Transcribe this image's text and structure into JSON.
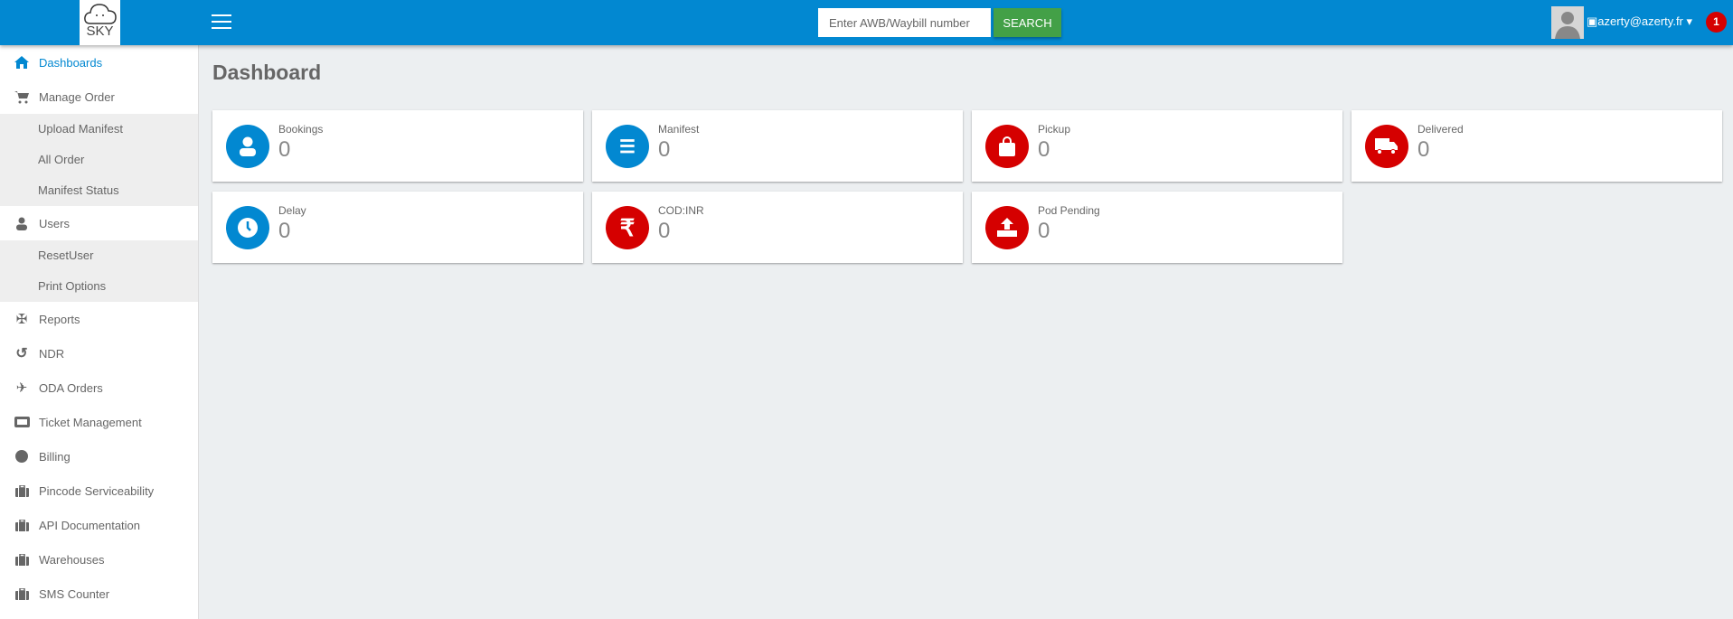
{
  "header": {
    "logo_text": "SKY",
    "search_placeholder": "Enter AWB/Waybill number",
    "search_label": "SEARCH",
    "user_email": "azerty@azerty.fr",
    "notification_count": "1"
  },
  "sidebar": {
    "items": [
      {
        "label": "Dashboards",
        "icon": "home-icon",
        "active": true
      },
      {
        "label": "Manage Order",
        "icon": "cart-icon",
        "sub": [
          "Upload Manifest",
          "All Order",
          "Manifest Status"
        ]
      },
      {
        "label": "Users",
        "icon": "user-icon",
        "sub": [
          "ResetUser",
          "Print Options"
        ]
      },
      {
        "label": "Reports",
        "icon": "pinwheel-icon"
      },
      {
        "label": "NDR",
        "icon": "undo-icon"
      },
      {
        "label": "ODA Orders",
        "icon": "plane-icon"
      },
      {
        "label": "Ticket Management",
        "icon": "ticket-icon"
      },
      {
        "label": "Billing",
        "icon": "circle-icon"
      },
      {
        "label": "Pincode Serviceability",
        "icon": "briefcase-icon"
      },
      {
        "label": "API Documentation",
        "icon": "briefcase-icon"
      },
      {
        "label": "Warehouses",
        "icon": "briefcase-icon"
      },
      {
        "label": "SMS Counter",
        "icon": "briefcase-icon"
      }
    ]
  },
  "page_title": "Dashboard",
  "colors": {
    "primary": "#0288d1",
    "danger": "#d50000",
    "success": "#43a047"
  },
  "cards": [
    {
      "label": "Bookings",
      "value": "0",
      "icon": "user-icon",
      "color": "#0288d1"
    },
    {
      "label": "Manifest",
      "value": "0",
      "icon": "checklist-icon",
      "color": "#0288d1"
    },
    {
      "label": "Pickup",
      "value": "0",
      "icon": "shopping-bag-icon",
      "color": "#d50000"
    },
    {
      "label": "Delivered",
      "value": "0",
      "icon": "truck-icon",
      "color": "#d50000"
    },
    {
      "label": "Delay",
      "value": "0",
      "icon": "clock-icon",
      "color": "#0288d1"
    },
    {
      "label": "COD:INR",
      "value": "0",
      "icon": "rupee-icon",
      "color": "#d50000"
    },
    {
      "label": "Pod Pending",
      "value": "0",
      "icon": "upload-icon",
      "color": "#d50000"
    }
  ]
}
